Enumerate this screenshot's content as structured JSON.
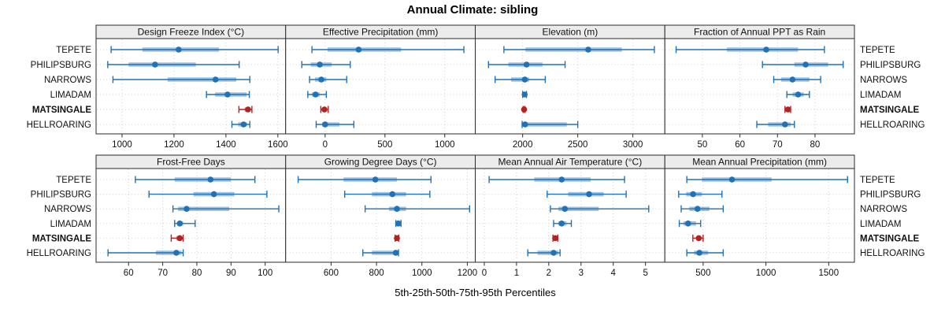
{
  "title": "Annual Climate: sibling",
  "xlabel": "5th-25th-50th-75th-95th Percentiles",
  "sites": [
    "TEPETE",
    "PHILIPSBURG",
    "NARROWS",
    "LIMADAM",
    "MATSINGALE",
    "HELLROARING"
  ],
  "highlight_site": "MATSINGALE",
  "colors": {
    "series": "#2171b5",
    "highlight": "#b22222",
    "strip_bg": "#ececec",
    "grid": "#d0d0d0",
    "border": "#2a2a2a",
    "text": "#111111"
  },
  "chart_data": {
    "type": "dotplot",
    "note": "5th-25th-50th-75th-95th percentile summaries per site, 8 panels",
    "percentiles": [
      5,
      25,
      50,
      75,
      95
    ],
    "legend_position": "none",
    "grid": "dotted",
    "panels": [
      {
        "title": "Design Freeze Index (°C)",
        "xlim": [
          900,
          1630
        ],
        "ticks": [
          1000,
          1200,
          1400,
          1600
        ],
        "values": [
          [
            958,
            1078,
            1218,
            1373,
            1601
          ],
          [
            945,
            1025,
            1127,
            1284,
            1451
          ],
          [
            965,
            1175,
            1360,
            1440,
            1492
          ],
          [
            1325,
            1358,
            1406,
            1480,
            1490
          ],
          [
            1450,
            1472,
            1485,
            1493,
            1500
          ],
          [
            1423,
            1447,
            1468,
            1482,
            1492
          ]
        ]
      },
      {
        "title": "Effective Precipitation (mm)",
        "xlim": [
          -330,
          1255
        ],
        "ticks": [
          0,
          500,
          1000
        ],
        "values": [
          [
            -110,
            20,
            280,
            635,
            1160
          ],
          [
            -195,
            -120,
            -45,
            55,
            210
          ],
          [
            -130,
            -85,
            -32,
            10,
            180
          ],
          [
            -145,
            -110,
            -80,
            -45,
            10
          ],
          [
            -36,
            -20,
            -6,
            10,
            26
          ],
          [
            -75,
            -25,
            0,
            120,
            240
          ]
        ]
      },
      {
        "title": "Elevation (m)",
        "xlim": [
          1570,
          3290
        ],
        "ticks": [
          2000,
          2500,
          3000
        ],
        "values": [
          [
            1830,
            2025,
            2595,
            2900,
            3195
          ],
          [
            1690,
            1870,
            2035,
            2180,
            2385
          ],
          [
            1750,
            1895,
            2020,
            2060,
            2205
          ],
          [
            2000,
            2010,
            2018,
            2026,
            2035
          ],
          [
            2005,
            2009,
            2013,
            2017,
            2021
          ],
          [
            1995,
            2010,
            2022,
            2400,
            2500
          ]
        ]
      },
      {
        "title": "Fraction of Annual PPT as Rain",
        "xlim": [
          40,
          90.5
        ],
        "ticks": [
          50,
          60,
          70,
          80
        ],
        "values": [
          [
            43,
            56.5,
            67,
            75.5,
            82.5
          ],
          [
            66,
            74.5,
            77.5,
            83.5,
            87.5
          ],
          [
            69,
            71,
            74,
            78.5,
            81.5
          ],
          [
            72.5,
            74,
            75.5,
            77,
            78.5
          ],
          [
            72,
            72.4,
            72.8,
            73.1,
            73.5
          ],
          [
            64.5,
            67.5,
            72,
            73.5,
            74.5
          ]
        ]
      },
      {
        "title": "Frost-Free Days",
        "xlim": [
          50.5,
          106
        ],
        "ticks": [
          60,
          70,
          80,
          90,
          100
        ],
        "values": [
          [
            62,
            73.5,
            84,
            90,
            97
          ],
          [
            66,
            79,
            85,
            91,
            100.5
          ],
          [
            73,
            74.5,
            77,
            89.5,
            104
          ],
          [
            73.5,
            74.3,
            75,
            76,
            79.5
          ],
          [
            72.5,
            74,
            75,
            75.6,
            76
          ],
          [
            54,
            68,
            74,
            75.5,
            76
          ]
        ]
      },
      {
        "title": "Growing Degree Days (°C)",
        "xlim": [
          400,
          1235
        ],
        "ticks": [
          600,
          800,
          1000,
          1200
        ],
        "values": [
          [
            455,
            655,
            795,
            890,
            1040
          ],
          [
            660,
            780,
            870,
            930,
            1035
          ],
          [
            750,
            855,
            890,
            930,
            1210
          ],
          [
            885,
            890,
            896,
            902,
            908
          ],
          [
            882,
            886,
            890,
            894,
            898
          ],
          [
            740,
            780,
            885,
            892,
            897
          ]
        ]
      },
      {
        "title": "Mean Annual Air Temperature (°C)",
        "xlim": [
          -0.28,
          5.6
        ],
        "ticks": [
          0,
          1,
          2,
          3,
          4,
          5
        ],
        "values": [
          [
            0.15,
            1.55,
            2.4,
            3.3,
            4.35
          ],
          [
            1.95,
            2.6,
            3.25,
            3.7,
            4.4
          ],
          [
            2.05,
            2.3,
            2.5,
            3.55,
            5.1
          ],
          [
            2.15,
            2.3,
            2.4,
            2.55,
            2.7
          ],
          [
            2.13,
            2.17,
            2.2,
            2.24,
            2.28
          ],
          [
            1.35,
            1.65,
            2.15,
            2.3,
            2.35
          ]
        ]
      },
      {
        "title": "Mean Annual Precipitation (mm)",
        "xlim": [
          195,
          1705
        ],
        "ticks": [
          500,
          1000,
          1500
        ],
        "values": [
          [
            370,
            490,
            730,
            1045,
            1650
          ],
          [
            305,
            365,
            420,
            490,
            650
          ],
          [
            325,
            390,
            455,
            550,
            660
          ],
          [
            310,
            343,
            380,
            443,
            480
          ],
          [
            418,
            445,
            465,
            485,
            500
          ],
          [
            370,
            428,
            470,
            540,
            660
          ]
        ]
      }
    ]
  }
}
